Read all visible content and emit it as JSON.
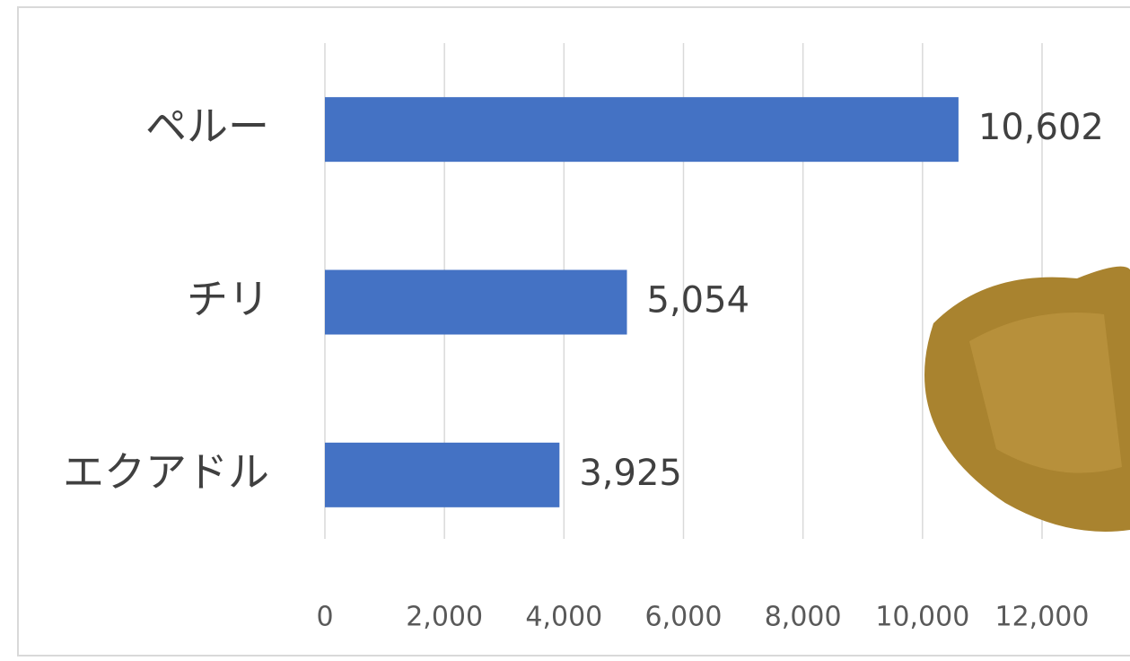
{
  "chart_data": {
    "type": "bar",
    "orientation": "horizontal",
    "categories": [
      "ペルー",
      "チリ",
      "エクアドル"
    ],
    "values": [
      10602,
      5054,
      3925
    ],
    "value_labels": [
      "10,602",
      "5,054",
      "3,925"
    ],
    "color": "#4472c4",
    "xlim": [
      0,
      12000
    ],
    "xticks": [
      0,
      {
        "value": 2000,
        "label": "2,000"
      },
      {
        "value": 4000,
        "label": "4,000"
      },
      {
        "value": 6000,
        "label": "6,000"
      },
      {
        "value": 8000,
        "label": "8,000"
      },
      {
        "value": 10000,
        "label": "10,000"
      },
      {
        "value": 12000,
        "label": "12,000"
      }
    ],
    "grid": true
  }
}
